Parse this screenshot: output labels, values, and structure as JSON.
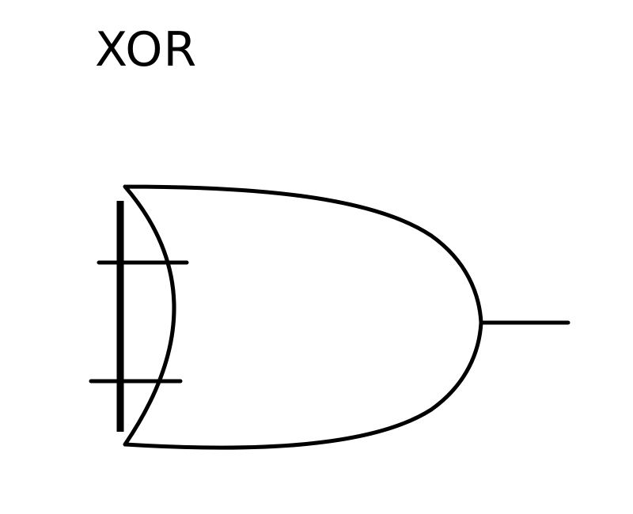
{
  "diagram": {
    "title": "XOR",
    "gate_type": "xor-gate",
    "inputs": 2,
    "outputs": 1,
    "line_color": "#000000",
    "background_color": "#ffffff"
  }
}
